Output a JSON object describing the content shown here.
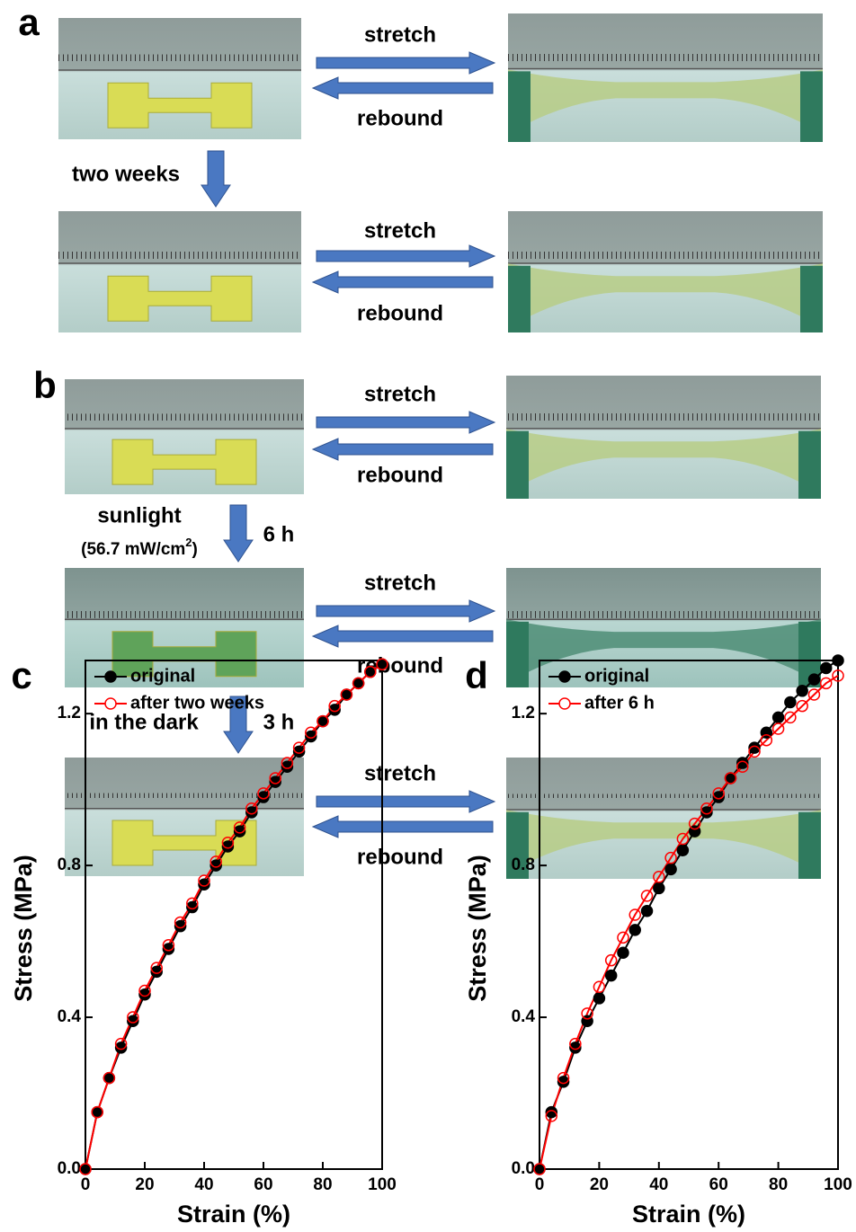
{
  "panel_a": {
    "label": "a",
    "step": "two weeks",
    "rows": [
      {
        "stretch": "stretch",
        "rebound": "rebound"
      },
      {
        "stretch": "stretch",
        "rebound": "rebound"
      }
    ]
  },
  "panel_b": {
    "label": "b",
    "rows": [
      {
        "stretch": "stretch",
        "rebound": "rebound"
      },
      {
        "stretch": "stretch",
        "rebound": "rebound"
      },
      {
        "stretch": "stretch",
        "rebound": "rebound"
      }
    ],
    "step1": {
      "text": "sunlight",
      "note": "(56.7 mW/cm",
      "note_sup": "2",
      "note_close": ")",
      "time": "6 h"
    },
    "step2": {
      "text": "in the dark",
      "time": "3 h"
    }
  },
  "chart_data": [
    {
      "type": "line",
      "panel": "c",
      "xlabel": "Strain (%)",
      "ylabel": "Stress (MPa)",
      "x": [
        0,
        4,
        8,
        12,
        16,
        20,
        24,
        28,
        32,
        36,
        40,
        44,
        48,
        52,
        56,
        60,
        64,
        68,
        72,
        76,
        80,
        84,
        88,
        92,
        96,
        100
      ],
      "series": [
        {
          "name": "original",
          "color": "#000000",
          "marker": "filled",
          "values": [
            0,
            0.15,
            0.24,
            0.32,
            0.39,
            0.46,
            0.52,
            0.58,
            0.64,
            0.69,
            0.75,
            0.8,
            0.85,
            0.89,
            0.94,
            0.98,
            1.02,
            1.06,
            1.1,
            1.14,
            1.18,
            1.21,
            1.25,
            1.28,
            1.31,
            1.33
          ]
        },
        {
          "name": "after two weeks",
          "color": "#ff0000",
          "marker": "open",
          "values": [
            0,
            0.15,
            0.24,
            0.33,
            0.4,
            0.47,
            0.53,
            0.59,
            0.65,
            0.7,
            0.76,
            0.81,
            0.86,
            0.9,
            0.95,
            0.99,
            1.03,
            1.07,
            1.11,
            1.15,
            1.18,
            1.22,
            1.25,
            1.28,
            1.31,
            1.33
          ]
        }
      ],
      "xlim": [
        0,
        100
      ],
      "ylim": [
        0,
        1.34
      ],
      "xticks": [
        0,
        20,
        40,
        60,
        80,
        100
      ],
      "yticks": [
        {
          "value": 0,
          "label": "0.0"
        },
        0.4,
        0.8,
        1.2
      ]
    },
    {
      "type": "line",
      "panel": "d",
      "xlabel": "Strain (%)",
      "ylabel": "Stress (MPa)",
      "x": [
        0,
        4,
        8,
        12,
        16,
        20,
        24,
        28,
        32,
        36,
        40,
        44,
        48,
        52,
        56,
        60,
        64,
        68,
        72,
        76,
        80,
        84,
        88,
        92,
        96,
        100
      ],
      "series": [
        {
          "name": "original",
          "color": "#000000",
          "marker": "filled",
          "values": [
            0,
            0.15,
            0.23,
            0.32,
            0.39,
            0.45,
            0.51,
            0.57,
            0.63,
            0.68,
            0.74,
            0.79,
            0.84,
            0.89,
            0.94,
            0.98,
            1.03,
            1.07,
            1.11,
            1.15,
            1.19,
            1.23,
            1.26,
            1.29,
            1.32,
            1.34
          ]
        },
        {
          "name": "after 6 h",
          "color": "#ff0000",
          "marker": "open",
          "values": [
            0,
            0.14,
            0.24,
            0.33,
            0.41,
            0.48,
            0.55,
            0.61,
            0.67,
            0.72,
            0.77,
            0.82,
            0.87,
            0.91,
            0.95,
            0.99,
            1.03,
            1.06,
            1.1,
            1.13,
            1.16,
            1.19,
            1.22,
            1.25,
            1.28,
            1.3
          ]
        }
      ],
      "xlim": [
        0,
        100
      ],
      "ylim": [
        0,
        1.34
      ],
      "xticks": [
        0,
        20,
        40,
        60,
        80,
        100
      ],
      "yticks": [
        {
          "value": 0,
          "label": "0.0"
        },
        0.4,
        0.8,
        1.2
      ]
    }
  ]
}
